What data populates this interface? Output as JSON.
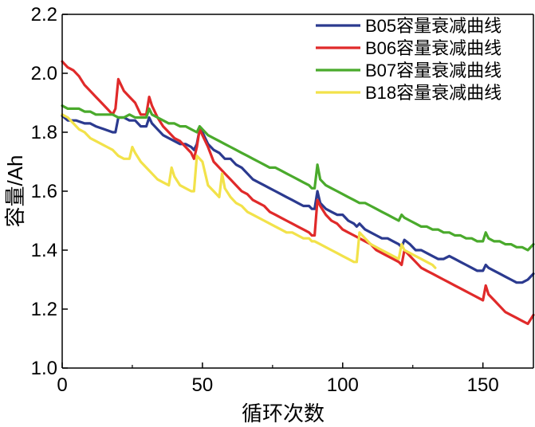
{
  "chart_data": {
    "type": "line",
    "title": "",
    "xlabel": "循环次数",
    "ylabel": "容量/Ah",
    "xlim": [
      0,
      168
    ],
    "ylim": [
      1.0,
      2.2
    ],
    "xticks": [
      0,
      50,
      100,
      150
    ],
    "yticks": [
      1.0,
      1.2,
      1.4,
      1.6,
      1.8,
      2.0,
      2.2
    ],
    "xtick_labels": [
      "0",
      "50",
      "100",
      "150"
    ],
    "ytick_labels": [
      "1.0",
      "1.2",
      "1.4",
      "1.6",
      "1.8",
      "2.0",
      "2.2"
    ],
    "grid": false,
    "legend_position": "top-right",
    "series": [
      {
        "name": "B05容量衰减曲线",
        "color": "#2b3a8f",
        "x": [
          0,
          2,
          5,
          8,
          10,
          12,
          15,
          18,
          19,
          20,
          22,
          24,
          26,
          28,
          30,
          31,
          32,
          34,
          36,
          38,
          40,
          42,
          44,
          46,
          47,
          48,
          49,
          50,
          52,
          54,
          56,
          58,
          60,
          62,
          64,
          66,
          68,
          70,
          72,
          74,
          76,
          78,
          80,
          82,
          84,
          86,
          88,
          89,
          90,
          91,
          92,
          94,
          96,
          98,
          100,
          102,
          104,
          105,
          106,
          108,
          110,
          112,
          114,
          116,
          118,
          120,
          121,
          122,
          124,
          126,
          128,
          130,
          132,
          134,
          136,
          138,
          140,
          142,
          144,
          146,
          148,
          150,
          151,
          152,
          154,
          156,
          158,
          160,
          162,
          164,
          166,
          168
        ],
        "y": [
          1.856,
          1.84,
          1.84,
          1.83,
          1.83,
          1.82,
          1.81,
          1.8,
          1.8,
          1.85,
          1.85,
          1.84,
          1.84,
          1.82,
          1.82,
          1.85,
          1.83,
          1.81,
          1.79,
          1.78,
          1.77,
          1.76,
          1.76,
          1.75,
          1.74,
          1.76,
          1.81,
          1.8,
          1.76,
          1.74,
          1.73,
          1.71,
          1.71,
          1.69,
          1.68,
          1.66,
          1.64,
          1.63,
          1.62,
          1.61,
          1.6,
          1.59,
          1.58,
          1.57,
          1.56,
          1.55,
          1.55,
          1.54,
          1.54,
          1.6,
          1.56,
          1.54,
          1.53,
          1.52,
          1.52,
          1.5,
          1.49,
          1.48,
          1.49,
          1.47,
          1.46,
          1.45,
          1.44,
          1.44,
          1.43,
          1.42,
          1.41,
          1.435,
          1.42,
          1.4,
          1.4,
          1.39,
          1.38,
          1.37,
          1.37,
          1.38,
          1.37,
          1.36,
          1.35,
          1.34,
          1.33,
          1.33,
          1.35,
          1.34,
          1.33,
          1.32,
          1.31,
          1.3,
          1.29,
          1.29,
          1.3,
          1.32
        ]
      },
      {
        "name": "B06容量衰减曲线",
        "color": "#e02a2a",
        "x": [
          0,
          2,
          4,
          6,
          8,
          9,
          10,
          12,
          14,
          16,
          18,
          19,
          20,
          22,
          24,
          26,
          28,
          30,
          31,
          32,
          34,
          36,
          38,
          40,
          42,
          44,
          46,
          47,
          48,
          49,
          50,
          52,
          54,
          56,
          58,
          60,
          62,
          64,
          66,
          68,
          70,
          72,
          74,
          76,
          78,
          80,
          82,
          84,
          86,
          88,
          89,
          90,
          91,
          92,
          94,
          96,
          98,
          100,
          102,
          104,
          106,
          108,
          110,
          112,
          114,
          116,
          118,
          120,
          121,
          122,
          124,
          126,
          128,
          130,
          132,
          134,
          136,
          138,
          140,
          142,
          144,
          146,
          148,
          150,
          151,
          152,
          154,
          156,
          158,
          160,
          162,
          164,
          166,
          168
        ],
        "y": [
          2.04,
          2.02,
          2.01,
          1.99,
          1.96,
          1.95,
          1.94,
          1.92,
          1.9,
          1.88,
          1.86,
          1.88,
          1.98,
          1.94,
          1.92,
          1.9,
          1.86,
          1.86,
          1.92,
          1.89,
          1.85,
          1.82,
          1.8,
          1.78,
          1.77,
          1.75,
          1.73,
          1.71,
          1.75,
          1.81,
          1.79,
          1.75,
          1.7,
          1.68,
          1.66,
          1.64,
          1.62,
          1.6,
          1.59,
          1.57,
          1.56,
          1.55,
          1.53,
          1.52,
          1.51,
          1.5,
          1.49,
          1.48,
          1.47,
          1.46,
          1.45,
          1.45,
          1.57,
          1.55,
          1.52,
          1.5,
          1.49,
          1.47,
          1.46,
          1.45,
          1.44,
          1.43,
          1.42,
          1.4,
          1.39,
          1.38,
          1.37,
          1.36,
          1.35,
          1.4,
          1.38,
          1.36,
          1.34,
          1.33,
          1.32,
          1.31,
          1.3,
          1.29,
          1.28,
          1.27,
          1.26,
          1.25,
          1.24,
          1.23,
          1.28,
          1.25,
          1.23,
          1.21,
          1.19,
          1.18,
          1.17,
          1.16,
          1.15,
          1.18
        ]
      },
      {
        "name": "B07容量衰减曲线",
        "color": "#4aaa2c",
        "x": [
          0,
          2,
          4,
          6,
          8,
          10,
          12,
          14,
          16,
          18,
          20,
          22,
          24,
          26,
          28,
          30,
          31,
          32,
          34,
          36,
          38,
          40,
          42,
          44,
          46,
          48,
          49,
          50,
          52,
          54,
          56,
          58,
          60,
          62,
          64,
          66,
          68,
          70,
          72,
          74,
          76,
          78,
          80,
          82,
          84,
          86,
          88,
          89,
          90,
          91,
          92,
          94,
          96,
          98,
          100,
          102,
          104,
          106,
          108,
          110,
          112,
          114,
          116,
          118,
          120,
          121,
          122,
          124,
          126,
          128,
          130,
          132,
          134,
          136,
          138,
          140,
          142,
          144,
          146,
          148,
          150,
          151,
          152,
          154,
          156,
          158,
          160,
          162,
          164,
          166,
          168
        ],
        "y": [
          1.89,
          1.88,
          1.88,
          1.88,
          1.87,
          1.87,
          1.86,
          1.86,
          1.86,
          1.86,
          1.85,
          1.85,
          1.86,
          1.85,
          1.85,
          1.85,
          1.88,
          1.86,
          1.85,
          1.84,
          1.83,
          1.83,
          1.82,
          1.82,
          1.81,
          1.8,
          1.82,
          1.81,
          1.79,
          1.78,
          1.77,
          1.76,
          1.75,
          1.74,
          1.73,
          1.72,
          1.71,
          1.7,
          1.69,
          1.68,
          1.68,
          1.67,
          1.66,
          1.65,
          1.64,
          1.63,
          1.62,
          1.61,
          1.61,
          1.69,
          1.64,
          1.62,
          1.61,
          1.6,
          1.59,
          1.58,
          1.57,
          1.56,
          1.56,
          1.55,
          1.54,
          1.53,
          1.52,
          1.51,
          1.5,
          1.52,
          1.51,
          1.5,
          1.49,
          1.48,
          1.48,
          1.47,
          1.47,
          1.46,
          1.46,
          1.45,
          1.45,
          1.44,
          1.44,
          1.43,
          1.43,
          1.46,
          1.44,
          1.43,
          1.43,
          1.42,
          1.42,
          1.41,
          1.41,
          1.4,
          1.42
        ]
      },
      {
        "name": "B18容量衰减曲线",
        "color": "#f2e24a",
        "x": [
          0,
          2,
          4,
          6,
          8,
          10,
          12,
          14,
          16,
          18,
          20,
          22,
          24,
          25,
          26,
          28,
          30,
          32,
          34,
          36,
          38,
          39,
          40,
          42,
          44,
          46,
          47,
          48,
          50,
          52,
          54,
          56,
          57,
          58,
          60,
          62,
          64,
          66,
          68,
          70,
          72,
          74,
          76,
          78,
          80,
          82,
          84,
          86,
          88,
          89,
          90,
          92,
          94,
          96,
          98,
          100,
          102,
          104,
          105,
          106,
          108,
          110,
          112,
          114,
          116,
          118,
          120,
          121,
          122,
          124,
          126,
          128,
          130,
          132,
          133
        ],
        "y": [
          1.86,
          1.85,
          1.83,
          1.81,
          1.8,
          1.78,
          1.77,
          1.76,
          1.75,
          1.74,
          1.72,
          1.71,
          1.71,
          1.75,
          1.73,
          1.7,
          1.68,
          1.66,
          1.64,
          1.63,
          1.62,
          1.68,
          1.65,
          1.62,
          1.61,
          1.6,
          1.6,
          1.72,
          1.7,
          1.62,
          1.6,
          1.58,
          1.66,
          1.61,
          1.58,
          1.56,
          1.55,
          1.53,
          1.52,
          1.51,
          1.5,
          1.49,
          1.48,
          1.47,
          1.46,
          1.46,
          1.45,
          1.44,
          1.44,
          1.43,
          1.43,
          1.42,
          1.41,
          1.4,
          1.39,
          1.38,
          1.37,
          1.36,
          1.36,
          1.46,
          1.44,
          1.42,
          1.41,
          1.4,
          1.39,
          1.38,
          1.37,
          1.42,
          1.4,
          1.39,
          1.38,
          1.37,
          1.36,
          1.35,
          1.34
        ]
      }
    ]
  }
}
